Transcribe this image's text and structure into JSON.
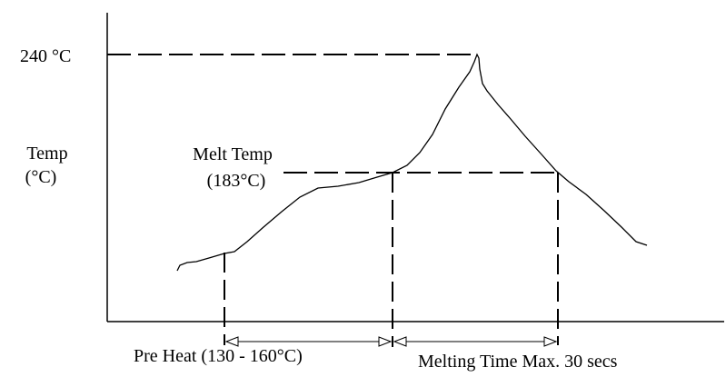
{
  "labels": {
    "peak": "240 °C",
    "y_axis_line1": "Temp",
    "y_axis_line2": "(°C)",
    "melt_line1": "Melt Temp",
    "melt_line2": "(183°C)",
    "preheat": "Pre Heat (130 - 160°C)",
    "melting_time": "Melting Time Max. 30 secs"
  },
  "colors": {
    "stroke": "#000000",
    "background": "#ffffff"
  }
}
